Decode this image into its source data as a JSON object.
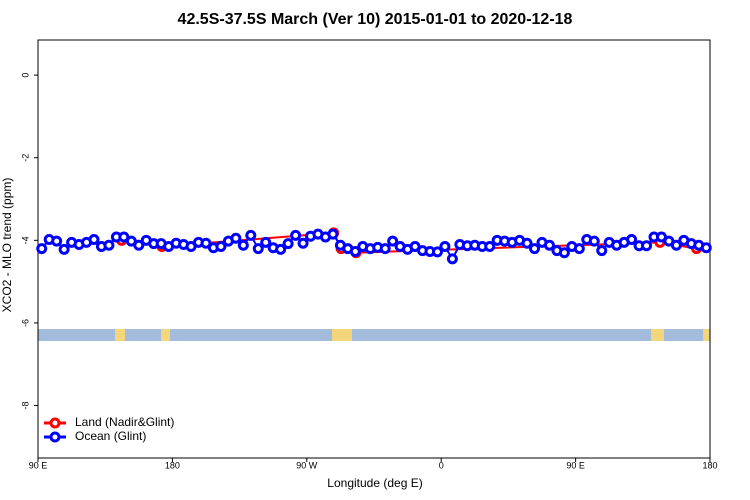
{
  "chart_data": {
    "type": "line",
    "title": "42.5S-37.5S March (Ver 10)   2015-01-01 to 2020-12-18",
    "x_label": "Longitude (deg E)",
    "y_label": "XCO2 - MLO trend (ppm)",
    "xlim": [
      90,
      540
    ],
    "xticks": [
      {
        "value": 90,
        "label": "90 E"
      },
      180,
      {
        "value": 270,
        "label": "90 W"
      },
      {
        "value": 360,
        "label": "0"
      },
      {
        "value": 450,
        "label": "90 E"
      },
      {
        "value": 540,
        "label": "180"
      }
    ],
    "ylim": [
      -9.27,
      0.85
    ],
    "yticks": [
      0,
      -2,
      -4,
      -6,
      -8
    ],
    "legend": "bottom-left",
    "series": [
      {
        "name": "Land (Nadir&Glint)",
        "color": "#ff0000",
        "x": [
          146,
          173,
          288,
          293,
          303,
          506.5,
          531
        ],
        "values": [
          -4.0,
          -4.15,
          -3.82,
          -4.2,
          -4.3,
          -4.05,
          -4.2
        ]
      },
      {
        "name": "Ocean (Glint)",
        "color": "#0000ff",
        "x": [
          92.5,
          97.5,
          102.5,
          107.5,
          112.5,
          117.5,
          122.5,
          127.5,
          132.5,
          137.5,
          142.5,
          147.5,
          152.5,
          157.5,
          162.5,
          167.5,
          172.5,
          177.5,
          182.5,
          187.5,
          192.5,
          197.5,
          202.5,
          207.5,
          212.5,
          217.5,
          222.5,
          227.5,
          232.5,
          237.5,
          242.5,
          247.5,
          252.5,
          257.5,
          262.5,
          267.5,
          272.5,
          277.5,
          282.5,
          287.5,
          292.5,
          297.5,
          302.5,
          307.5,
          312.5,
          317.5,
          322.5,
          327.5,
          332.5,
          337.5,
          342.5,
          347.5,
          352.5,
          357.5,
          362.5,
          367.5,
          372.5,
          377.5,
          382.5,
          387.5,
          392.5,
          397.5,
          402.5,
          407.5,
          412.5,
          417.5,
          422.5,
          427.5,
          432.5,
          437.5,
          442.5,
          447.5,
          452.5,
          457.5,
          462.5,
          467.5,
          472.5,
          477.5,
          482.5,
          487.5,
          492.5,
          497.5,
          502.5,
          507.5,
          512.5,
          517.5,
          522.5,
          527.5,
          532.5,
          537.5
        ],
        "values": [
          -4.2,
          -3.98,
          -4.02,
          -4.22,
          -4.05,
          -4.1,
          -4.05,
          -3.98,
          -4.15,
          -4.12,
          -3.92,
          -3.92,
          -4.02,
          -4.12,
          -4.0,
          -4.08,
          -4.08,
          -4.15,
          -4.07,
          -4.1,
          -4.15,
          -4.05,
          -4.07,
          -4.18,
          -4.15,
          -4.02,
          -3.95,
          -4.12,
          -3.88,
          -4.2,
          -4.05,
          -4.18,
          -4.22,
          -4.08,
          -3.88,
          -4.07,
          -3.9,
          -3.85,
          -3.92,
          -3.85,
          -4.12,
          -4.2,
          -4.27,
          -4.15,
          -4.2,
          -4.17,
          -4.2,
          -4.02,
          -4.15,
          -4.22,
          -4.15,
          -4.25,
          -4.27,
          -4.28,
          -4.15,
          -4.45,
          -4.1,
          -4.13,
          -4.12,
          -4.15,
          -4.15,
          -4.0,
          -4.02,
          -4.05,
          -4.0,
          -4.07,
          -4.2,
          -4.05,
          -4.12,
          -4.25,
          -4.3,
          -4.15,
          -4.2,
          -3.98,
          -4.02,
          -4.25,
          -4.05,
          -4.12,
          -4.05,
          -3.98,
          -4.13,
          -4.13,
          -3.92,
          -3.92,
          -4.02,
          -4.12,
          -4.0,
          -4.08,
          -4.12,
          -4.18
        ]
      }
    ]
  }
}
